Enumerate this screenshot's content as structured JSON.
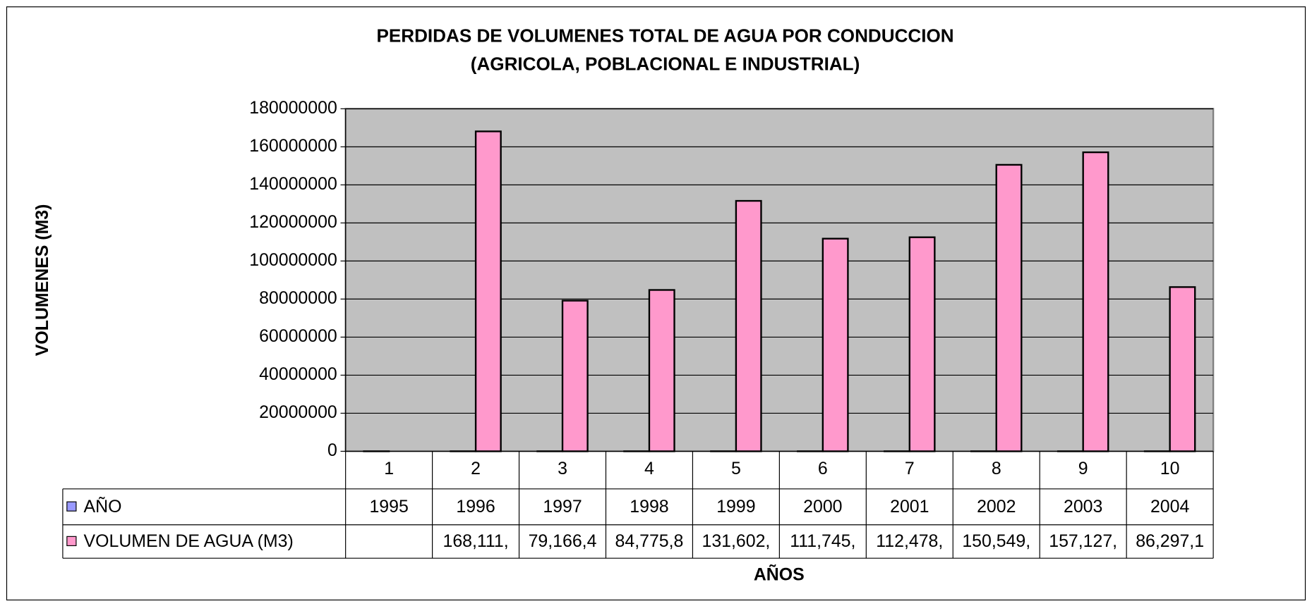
{
  "chart_data": {
    "type": "bar",
    "title": [
      "PERDIDAS DE VOLUMENES TOTAL DE AGUA POR CONDUCCION",
      "(AGRICOLA, POBLACIONAL E INDUSTRIAL)"
    ],
    "x_label": "AÑOS",
    "y_label": "VOLUMENES (M3)",
    "categories": [
      "1",
      "2",
      "3",
      "4",
      "5",
      "6",
      "7",
      "8",
      "9",
      "10"
    ],
    "series": [
      {
        "name": "AÑO",
        "color": "#9999ff",
        "values": [
          1995,
          1996,
          1997,
          1998,
          1999,
          2000,
          2001,
          2002,
          2003,
          2004
        ]
      },
      {
        "name": "VOLUMEN DE AGUA (M3)",
        "color": "#ff99cc",
        "values": [
          null,
          168111000,
          79166400,
          84775800,
          131602000,
          111745000,
          112478000,
          150549000,
          157127000,
          86297100
        ],
        "value_labels": [
          null,
          "168,111,",
          "79,166,4",
          "84,775,8",
          "131,602,",
          "111,745,",
          "112,478,",
          "150,549,",
          "157,127,",
          "86,297,1"
        ]
      }
    ],
    "ylim": [
      0,
      180000000
    ],
    "yticks": [
      0,
      20000000,
      40000000,
      60000000,
      80000000,
      100000000,
      120000000,
      140000000,
      160000000,
      180000000
    ],
    "grid": true,
    "plot_background": "#c0c0c0"
  }
}
